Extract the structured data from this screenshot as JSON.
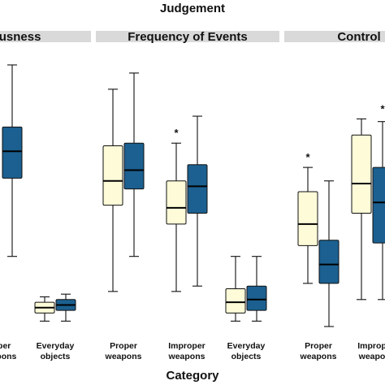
{
  "chart_data": {
    "type": "boxplot",
    "title": "Judgement",
    "xlabel": "Category",
    "ylabel": "",
    "ylim": [
      0,
      100
    ],
    "grid": false,
    "legend": "none",
    "colors": [
      "#fdfbd8",
      "#1b6090"
    ],
    "panels": [
      {
        "strip": "ousness",
        "groups": [
          {
            "label": [
              "oper",
              "eapons"
            ],
            "star": "",
            "boxes": [
              null,
              {
                "min": 26,
                "q1": 55,
                "median": 65,
                "q3": 74,
                "max": 97
              }
            ]
          },
          {
            "label": [
              "Everyday",
              "objects"
            ],
            "star": "",
            "boxes": [
              {
                "min": 2,
                "q1": 5,
                "median": 7,
                "q3": 9,
                "max": 11
              },
              {
                "min": 2,
                "q1": 6,
                "median": 8,
                "q3": 10,
                "max": 12
              }
            ]
          }
        ]
      },
      {
        "strip": "Frequency of Events",
        "groups": [
          {
            "label": [
              "Proper",
              "weapons"
            ],
            "star": "",
            "boxes": [
              {
                "min": 13,
                "q1": 45,
                "median": 54,
                "q3": 67,
                "max": 88
              },
              {
                "min": 26,
                "q1": 51,
                "median": 58,
                "q3": 68,
                "max": 94
              }
            ]
          },
          {
            "label": [
              "Improper",
              "weapons"
            ],
            "star": "*",
            "boxes": [
              {
                "min": 13,
                "q1": 38,
                "median": 44,
                "q3": 54,
                "max": 68
              },
              {
                "min": 15,
                "q1": 42,
                "median": 52,
                "q3": 60,
                "max": 78
              }
            ]
          },
          {
            "label": [
              "Everyday",
              "objects"
            ],
            "star": "",
            "boxes": [
              {
                "min": 2,
                "q1": 5,
                "median": 9,
                "q3": 14,
                "max": 26
              },
              {
                "min": 2,
                "q1": 6,
                "median": 10,
                "q3": 15,
                "max": 26
              }
            ]
          }
        ]
      },
      {
        "strip": "Control",
        "groups": [
          {
            "label": [
              "Proper",
              "weapons"
            ],
            "star": "*",
            "boxes": [
              {
                "min": 16,
                "q1": 30,
                "median": 38,
                "q3": 50,
                "max": 59
              },
              {
                "min": 0,
                "q1": 16,
                "median": 23,
                "q3": 32,
                "max": 54
              }
            ]
          },
          {
            "label": [
              "Improp",
              "weapo"
            ],
            "star": "*",
            "boxes": [
              {
                "min": 10,
                "q1": 42,
                "median": 53,
                "q3": 71,
                "max": 77
              },
              {
                "min": 10,
                "q1": 31,
                "median": 46,
                "q3": 59,
                "max": 76
              }
            ]
          }
        ]
      }
    ]
  }
}
